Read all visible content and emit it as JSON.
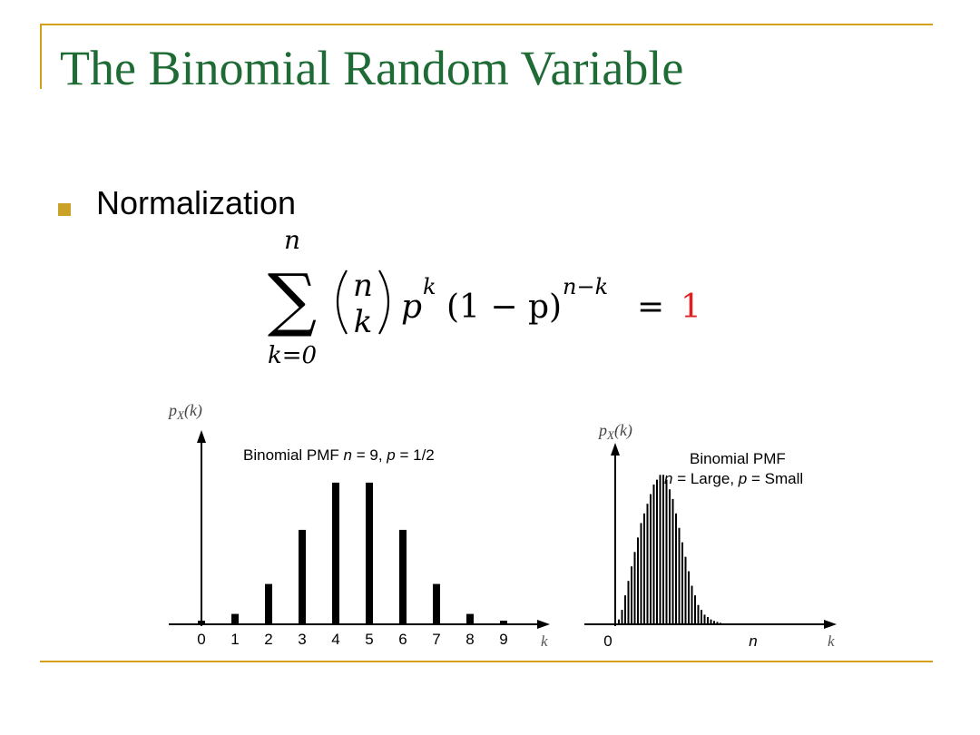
{
  "slide": {
    "title": "The Binomial Random Variable",
    "bullet": "Normalization",
    "colors": {
      "title": "#1e6b35",
      "rule": "#d4a017",
      "bullet": "#c9a227",
      "highlight": "#e02020"
    }
  },
  "formula": {
    "sum_upper": "n",
    "sum_symbol": "∑",
    "sum_lower": "k=0",
    "binom_top": "n",
    "binom_bottom": "k",
    "p_base": "p",
    "p_exp": "k",
    "factor": "(1 − p)",
    "factor_exp": "n−k",
    "equals": "=",
    "rhs": "1"
  },
  "chart_data": [
    {
      "type": "bar",
      "ylabel_base": "p",
      "ylabel_sub": "X",
      "ylabel_arg": "(k)",
      "xlabel": "k",
      "annotation": {
        "prefix": "Binomial PMF ",
        "n_sym": "n",
        "n_val": " = 9, ",
        "p_sym": "p",
        "p_val": " = 1/2"
      },
      "categories": [
        "0",
        "1",
        "2",
        "3",
        "4",
        "5",
        "6",
        "7",
        "8",
        "9"
      ],
      "values": [
        0.002,
        0.018,
        0.07,
        0.164,
        0.246,
        0.246,
        0.164,
        0.07,
        0.018,
        0.002
      ],
      "ylim": [
        0,
        0.26
      ]
    },
    {
      "type": "bar",
      "ylabel_base": "p",
      "ylabel_sub": "X",
      "ylabel_arg": "(k)",
      "xlabel": "k",
      "annotation": {
        "line1": "Binomial PMF",
        "n_sym": "n",
        "n_val": " = Large, ",
        "p_sym": "p",
        "p_val": " = Small"
      },
      "tick_labels": [
        "0",
        "n"
      ],
      "values": [
        0.01,
        0.03,
        0.06,
        0.09,
        0.12,
        0.15,
        0.18,
        0.21,
        0.23,
        0.25,
        0.27,
        0.29,
        0.3,
        0.31,
        0.31,
        0.3,
        0.28,
        0.26,
        0.23,
        0.2,
        0.17,
        0.14,
        0.11,
        0.08,
        0.06,
        0.04,
        0.03,
        0.02,
        0.015,
        0.01,
        0.007,
        0.005,
        0.003,
        0.002,
        0.001
      ],
      "ylim": [
        0,
        0.32
      ]
    }
  ]
}
